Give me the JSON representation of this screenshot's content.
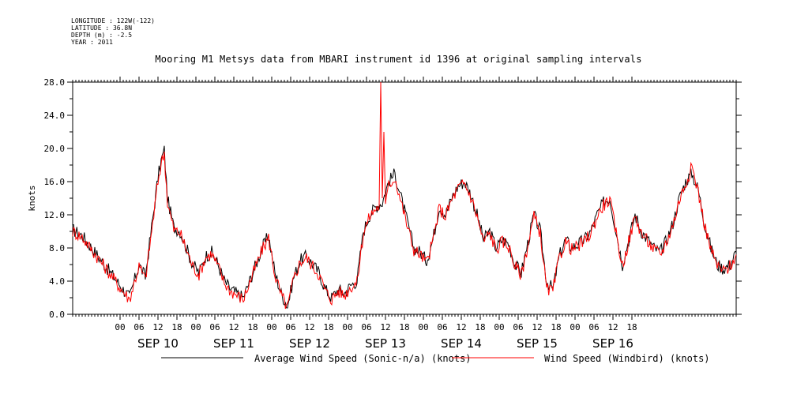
{
  "header": {
    "longitude": "LONGITUDE : 122W(-122)",
    "latitude": "LATITUDE : 36.8N",
    "depth": "DEPTH (m) : -2.5",
    "year": "YEAR : 2011"
  },
  "chart_data": {
    "type": "line",
    "title": "Mooring M1 Metsys data from MBARI instrument id 1396 at original sampling intervals",
    "ylabel": "knots",
    "xlabel": "",
    "ylim": [
      0,
      28
    ],
    "xlim_hours": [
      -15,
      195
    ],
    "y_ticks": [
      "0.0",
      "4.0",
      "8.0",
      "12.0",
      "16.0",
      "20.0",
      "24.0",
      "28.0"
    ],
    "x_hour_ticks": [
      "00",
      "06",
      "12",
      "18",
      "00",
      "06",
      "12",
      "18",
      "00",
      "06",
      "12",
      "18",
      "00",
      "06",
      "12",
      "18",
      "00",
      "06",
      "12",
      "18",
      "00",
      "06",
      "12",
      "18",
      "00",
      "06",
      "12",
      "18"
    ],
    "day_labels": [
      "SEP 10",
      "SEP 11",
      "SEP 12",
      "SEP 13",
      "SEP 14",
      "SEP 15",
      "SEP 16"
    ],
    "x_unit": "hours since SEP 10 00:00 UTC 2011",
    "series": [
      {
        "name": "Average Wind Speed (Sonic-n/a) (knots)",
        "color": "#000000",
        "x": [
          -15,
          -12,
          -9,
          -6,
          -3,
          0,
          3,
          6,
          8,
          10,
          12,
          13,
          14,
          15,
          17,
          19,
          21,
          23,
          25,
          27,
          29,
          31,
          33,
          35,
          37,
          39,
          41,
          43,
          45,
          47,
          49,
          51,
          53,
          55,
          57,
          59,
          61,
          63,
          65,
          67,
          69,
          71,
          73,
          75,
          77,
          79,
          81,
          83,
          85,
          87,
          89,
          91,
          93,
          95,
          97,
          99,
          101,
          103,
          105,
          107,
          109,
          111,
          113,
          115,
          117,
          119,
          121,
          123,
          125,
          127,
          129,
          131,
          133,
          135,
          137,
          139,
          141,
          143,
          145,
          147,
          149,
          151,
          153,
          155,
          157,
          159,
          161,
          163,
          165,
          167,
          169,
          171,
          173,
          175,
          177,
          179,
          181,
          183,
          185,
          187,
          189,
          191,
          193,
          195
        ],
        "values": [
          10.2,
          9.5,
          8.0,
          6.5,
          5.0,
          3.5,
          2.0,
          6.0,
          4.5,
          10.5,
          16.5,
          18.5,
          19.8,
          14.0,
          10.5,
          10.0,
          8.0,
          6.0,
          5.0,
          7.0,
          7.5,
          6.0,
          4.0,
          3.0,
          2.5,
          2.0,
          4.0,
          6.0,
          8.0,
          9.5,
          5.0,
          2.5,
          1.0,
          4.5,
          6.5,
          7.0,
          6.0,
          5.0,
          3.0,
          2.0,
          3.0,
          2.5,
          3.5,
          4.0,
          10.0,
          12.0,
          13.0,
          13.5,
          16.0,
          17.0,
          14.0,
          11.0,
          8.0,
          7.5,
          6.5,
          9.0,
          13.0,
          12.0,
          14.0,
          15.5,
          16.0,
          14.5,
          12.0,
          9.0,
          10.0,
          8.0,
          9.0,
          8.5,
          6.0,
          5.0,
          8.5,
          12.0,
          10.0,
          4.0,
          3.0,
          7.0,
          9.0,
          8.0,
          8.5,
          9.0,
          10.0,
          12.0,
          13.5,
          14.0,
          10.0,
          6.0,
          9.0,
          12.0,
          10.0,
          9.0,
          8.0,
          7.5,
          9.0,
          11.0,
          14.0,
          16.0,
          17.0,
          15.0,
          11.0,
          8.0,
          6.0,
          5.5,
          6.0,
          7.5
        ]
      },
      {
        "name": "Wind Speed (Windbird) (knots)",
        "color": "#ff0000",
        "x": [
          -15,
          -12,
          -9,
          -6,
          -3,
          0,
          3,
          6,
          8,
          10,
          12,
          13,
          14,
          15,
          17,
          19,
          21,
          23,
          25,
          27,
          29,
          31,
          33,
          35,
          37,
          39,
          41,
          43,
          45,
          47,
          49,
          51,
          53,
          55,
          57,
          59,
          61,
          63,
          65,
          67,
          69,
          71,
          73,
          75,
          77,
          79,
          81,
          82,
          82.5,
          83,
          83.5,
          84,
          85,
          87,
          89,
          91,
          93,
          95,
          97,
          99,
          101,
          103,
          105,
          107,
          109,
          111,
          113,
          115,
          117,
          119,
          121,
          123,
          125,
          127,
          129,
          131,
          133,
          135,
          137,
          139,
          141,
          143,
          145,
          147,
          149,
          151,
          153,
          155,
          157,
          159,
          161,
          163,
          165,
          167,
          169,
          171,
          173,
          175,
          177,
          179,
          181,
          183,
          185,
          187,
          189,
          191,
          193,
          195
        ],
        "values": [
          10.0,
          9.3,
          7.8,
          6.3,
          4.8,
          3.2,
          1.8,
          5.8,
          4.2,
          10.0,
          16.0,
          18.2,
          19.5,
          13.5,
          10.2,
          9.8,
          7.8,
          5.8,
          4.8,
          6.8,
          7.3,
          5.8,
          3.8,
          2.8,
          2.3,
          1.8,
          3.8,
          5.8,
          7.8,
          9.2,
          4.8,
          2.3,
          0.8,
          4.3,
          6.3,
          6.8,
          5.8,
          4.8,
          2.8,
          1.8,
          2.8,
          2.3,
          3.3,
          3.8,
          9.8,
          11.8,
          12.8,
          13.0,
          28.0,
          14.0,
          22.0,
          13.0,
          15.5,
          16.5,
          13.5,
          10.5,
          7.8,
          7.2,
          6.2,
          8.8,
          12.8,
          11.8,
          13.8,
          15.2,
          15.8,
          14.2,
          11.8,
          8.8,
          9.8,
          7.8,
          8.8,
          8.2,
          5.8,
          4.8,
          8.2,
          11.8,
          9.8,
          3.0,
          2.8,
          6.8,
          8.8,
          7.8,
          8.2,
          8.8,
          9.8,
          11.8,
          13.2,
          13.8,
          9.8,
          5.8,
          8.8,
          11.8,
          9.8,
          8.8,
          7.8,
          7.2,
          8.8,
          10.8,
          13.8,
          15.8,
          17.8,
          14.8,
          10.8,
          7.8,
          5.8,
          5.2,
          5.8,
          7.2
        ]
      }
    ],
    "legend_placement": "bottom",
    "grid": false
  }
}
